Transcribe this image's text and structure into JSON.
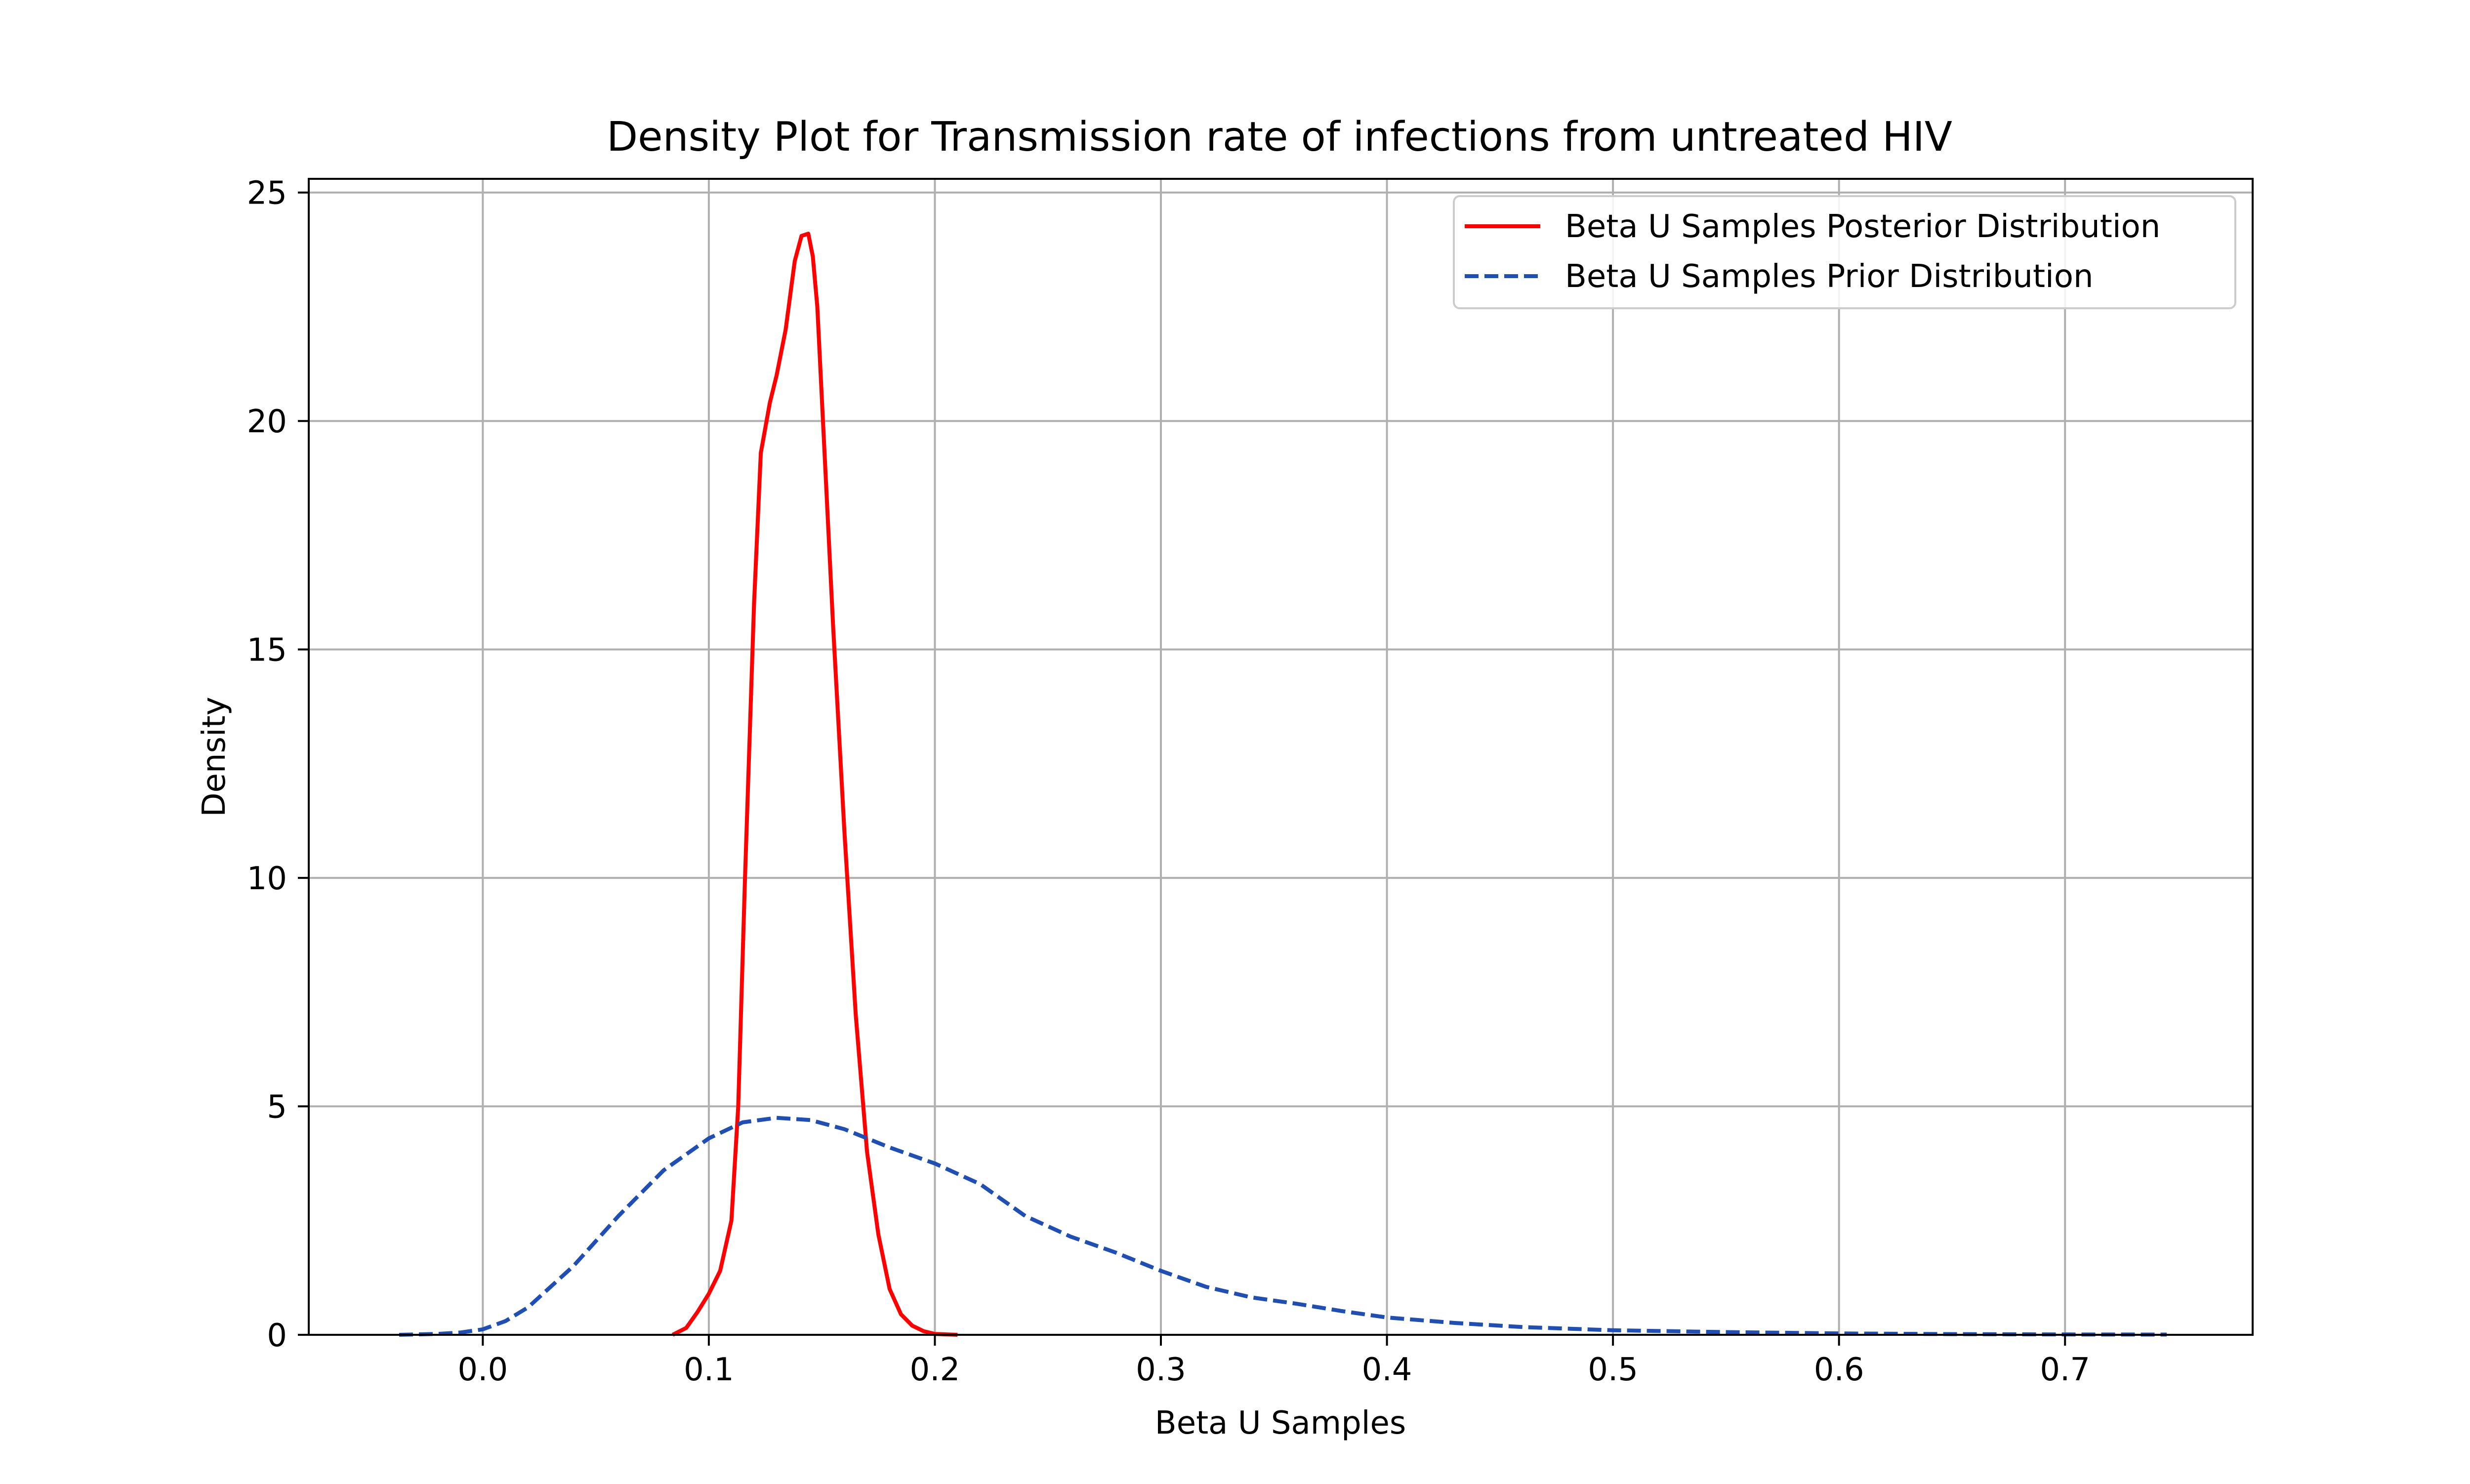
{
  "chart_data": {
    "type": "line",
    "title": "Density Plot for Transmission rate of infections from untreated HIV",
    "xlabel": "Beta U Samples",
    "ylabel": "Density",
    "xlim": [
      -0.077,
      0.783
    ],
    "ylim": [
      0,
      25.3
    ],
    "xticks": [
      0.0,
      0.1,
      0.2,
      0.3,
      0.4,
      0.5,
      0.6,
      0.7
    ],
    "xtick_labels": [
      "0.0",
      "0.1",
      "0.2",
      "0.3",
      "0.4",
      "0.5",
      "0.6",
      "0.7"
    ],
    "yticks": [
      0,
      5,
      10,
      15,
      20,
      25
    ],
    "ytick_labels": [
      "0",
      "5",
      "10",
      "15",
      "20",
      "25"
    ],
    "grid": true,
    "legend_position": "top-right",
    "series": [
      {
        "name": "Beta U Samples Posterior Distribution",
        "color": "#ff0000",
        "line_style": "solid",
        "x": [
          0.084,
          0.09,
          0.095,
          0.1,
          0.105,
          0.11,
          0.113,
          0.116,
          0.12,
          0.123,
          0.127,
          0.13,
          0.134,
          0.138,
          0.141,
          0.144,
          0.146,
          0.148,
          0.151,
          0.155,
          0.16,
          0.165,
          0.17,
          0.175,
          0.18,
          0.185,
          0.19,
          0.195,
          0.2,
          0.21
        ],
        "y": [
          0.0,
          0.15,
          0.5,
          0.9,
          1.4,
          2.5,
          5.0,
          10.0,
          16.0,
          19.3,
          20.4,
          21.0,
          22.0,
          23.5,
          24.05,
          24.1,
          23.6,
          22.5,
          19.5,
          15.5,
          11.0,
          7.0,
          4.0,
          2.2,
          1.0,
          0.45,
          0.2,
          0.08,
          0.02,
          0.0
        ]
      },
      {
        "name": "Beta U Samples Prior Distribution",
        "color": "#1f4fb4",
        "line_style": "dashed",
        "x": [
          -0.037,
          -0.02,
          -0.01,
          0.0,
          0.01,
          0.02,
          0.04,
          0.06,
          0.08,
          0.1,
          0.115,
          0.13,
          0.145,
          0.16,
          0.18,
          0.2,
          0.22,
          0.24,
          0.26,
          0.28,
          0.3,
          0.32,
          0.34,
          0.36,
          0.38,
          0.4,
          0.43,
          0.46,
          0.5,
          0.55,
          0.6,
          0.65,
          0.7,
          0.745
        ],
        "y": [
          0.0,
          0.02,
          0.05,
          0.12,
          0.3,
          0.6,
          1.5,
          2.6,
          3.6,
          4.3,
          4.65,
          4.75,
          4.7,
          4.5,
          4.1,
          3.75,
          3.3,
          2.6,
          2.15,
          1.8,
          1.4,
          1.05,
          0.82,
          0.68,
          0.52,
          0.38,
          0.26,
          0.17,
          0.1,
          0.06,
          0.03,
          0.015,
          0.008,
          0.005
        ]
      }
    ]
  }
}
